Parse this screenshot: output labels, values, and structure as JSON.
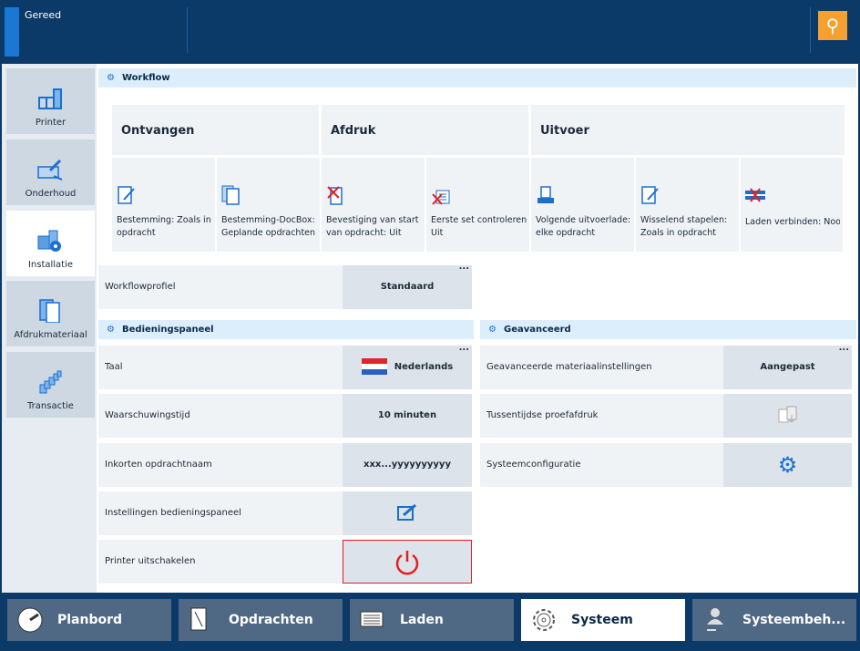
{
  "header": {
    "status": "Gereed",
    "wrench_icon": "wrench-icon",
    "accent": "#f5a030"
  },
  "sidebar": {
    "items": [
      {
        "label": "Printer",
        "icon": "printer-icon"
      },
      {
        "label": "Onderhoud",
        "icon": "maintenance-icon"
      },
      {
        "label": "Installatie",
        "icon": "installation-icon",
        "selected": true
      },
      {
        "label": "Afdrukmateriaal",
        "icon": "media-icon"
      },
      {
        "label": "Transactie",
        "icon": "transaction-icon"
      }
    ]
  },
  "workflow": {
    "title": "Workflow",
    "columns": [
      "Ontvangen",
      "Afdruk",
      "Uitvoer"
    ],
    "tiles": [
      {
        "line1": "Bestemming: Zoals in",
        "line2": "opdracht"
      },
      {
        "line1": "Bestemming-DocBox:",
        "line2": "Geplande opdrachten"
      },
      {
        "line1": "Bevestiging van start",
        "line2": "van opdracht: Uit"
      },
      {
        "line1": "Eerste set controleren:",
        "line2": "Uit"
      },
      {
        "line1": "Volgende uitvoerlade: Na",
        "line2": "elke opdracht"
      },
      {
        "line1": "Wisselend stapelen:",
        "line2": "Zoals in opdracht"
      },
      {
        "line1": "Laden verbinden: Nooit",
        "line2": ""
      }
    ],
    "profile_label": "Workflowprofiel",
    "profile_value": "Standaard"
  },
  "panel": {
    "title": "Bedieningspaneel",
    "rows": [
      {
        "label": "Taal",
        "value": "Nederlands"
      },
      {
        "label": "Waarschuwingstijd",
        "value": "10 minuten"
      },
      {
        "label": "Inkorten opdrachtnaam",
        "value": "xxx...yyyyyyyyyy"
      },
      {
        "label": "Instellingen bedieningspaneel",
        "value": ""
      },
      {
        "label": "Printer uitschakelen",
        "value": ""
      }
    ]
  },
  "advanced": {
    "title": "Geavanceerd",
    "rows": [
      {
        "label": "Geavanceerde materiaalinstellingen",
        "value": "Aangepast"
      },
      {
        "label": "Tussentijdse proefafdruk",
        "value": ""
      },
      {
        "label": "Systeemconfiguratie",
        "value": ""
      }
    ]
  },
  "more": "...",
  "tabs": [
    {
      "label": "Planbord"
    },
    {
      "label": "Opdrachten"
    },
    {
      "label": "Laden"
    },
    {
      "label": "Systeem",
      "selected": true
    },
    {
      "label": "Systeembeh..."
    }
  ]
}
